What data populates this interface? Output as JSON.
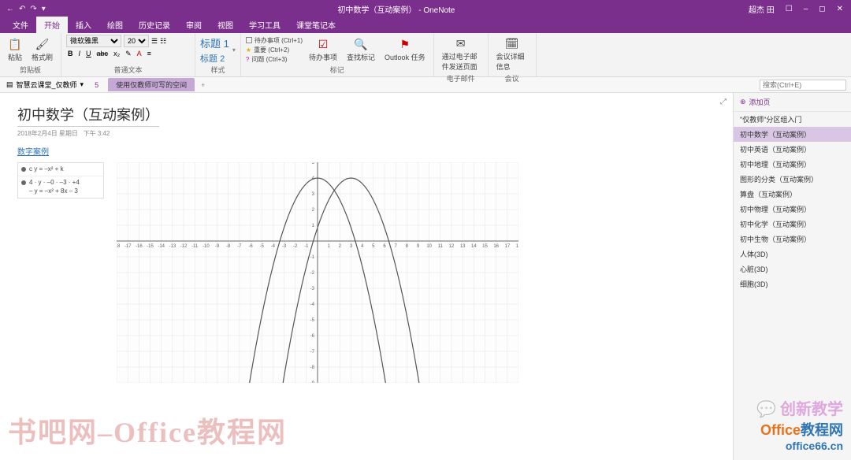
{
  "titlebar": {
    "title": "初中数学（互动案例） - OneNote",
    "user": "超杰 田",
    "bg_color": "#7b2f8d"
  },
  "ribbon_tabs": [
    "文件",
    "开始",
    "插入",
    "绘图",
    "历史记录",
    "审阅",
    "视图",
    "学习工具",
    "课堂笔记本"
  ],
  "ribbon_active_tab": 1,
  "ribbon": {
    "clipboard": {
      "paste": "粘贴",
      "format_painter": "格式刷",
      "label": "剪贴板"
    },
    "font": {
      "name": "微软雅黑",
      "size": "20",
      "bold": "B",
      "italic": "I",
      "underline": "U",
      "strike": "abc",
      "label": "普通文本"
    },
    "styles": {
      "h1": "标题 1",
      "h2": "标题 2",
      "label": "样式"
    },
    "tags": {
      "todo": "待办事项 (Ctrl+1)",
      "important": "重要 (Ctrl+2)",
      "question": "问题 (Ctrl+3)",
      "label": "标记",
      "todo_btn": "待办事项",
      "find": "查找标记",
      "outlook": "Outlook 任务"
    },
    "email": {
      "btn": "通过电子邮件发送页面",
      "label": "电子邮件"
    },
    "meeting": {
      "btn": "会议详细信息",
      "label": "会议"
    }
  },
  "notebook_bar": {
    "notebook": "智慧云课堂_仅教师",
    "page_indicator": "5",
    "section_tab": "使用仅教师可写的空间",
    "search_placeholder": "搜索(Ctrl+E)"
  },
  "page": {
    "title": "初中数学（互动案例）",
    "date": "2018年2月4日 星期日",
    "time": "下午 3:42",
    "link": "数字案例"
  },
  "equations": [
    {
      "lines": [
        "c y = –x² + k"
      ]
    },
    {
      "lines": [
        "4 · y · –0 · –3 · +4",
        "– y = –x² + 8x – 3"
      ]
    }
  ],
  "graph": {
    "type": "function-plot",
    "x_range": [
      -18,
      18
    ],
    "x_step": 1,
    "y_range": [
      -9,
      5
    ],
    "y_step": 1,
    "grid_color": "#e4e4e4",
    "axis_color": "#666666",
    "curve_color": "#555555",
    "bg_color": "#fdfdfd",
    "curves": [
      {
        "expr": "-x^2 + 4",
        "domain": [
          -7,
          7
        ]
      },
      {
        "expr": "-x^2 + 8x - 3 (shifted)",
        "vertex": [
          3,
          4
        ],
        "domain": [
          -4,
          10
        ]
      }
    ]
  },
  "page_panel": {
    "add": "添加页",
    "items": [
      "\"仅教师\"分区组入门",
      "初中数学（互动案例）",
      "初中英语（互动案例）",
      "初中地理（互动案例）",
      "图形的分类（互动案例）",
      "算盘（互动案例）",
      "初中物理（互动案例）",
      "初中化学（互动案例）",
      "初中生物（互动案例）",
      "人体(3D)",
      "心脏(3D)",
      "细胞(3D)"
    ],
    "active": 1
  },
  "watermark": {
    "left": "书吧网–Office教程网",
    "right1": "创新教学",
    "right2a": "Office",
    "right2b": "教程网",
    "right3": "office66.cn"
  }
}
